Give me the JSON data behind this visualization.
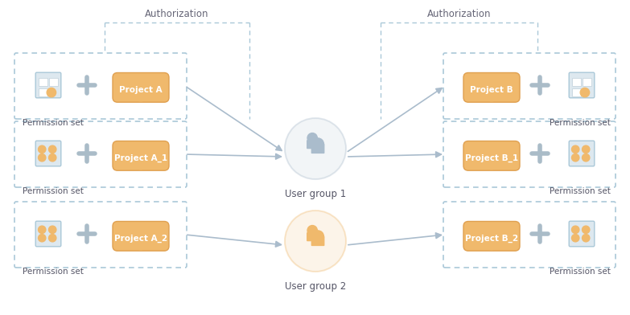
{
  "bg_color": "#ffffff",
  "dashed_box_color": "#aac8d8",
  "perm_box_fill": "#dde8ef",
  "perm_box_edge": "#aac8d8",
  "cloud_fill": "#f0b96c",
  "cloud_edge": "#e0a050",
  "plus_color": "#aabcc8",
  "user_group1_color": "#aabccc",
  "user_group2_color": "#f0b96c",
  "arrow_color": "#aabccc",
  "text_color": "#555566",
  "auth_text_color": "#666677",
  "left_boxes": [
    {
      "project": "Project A",
      "row": 0
    },
    {
      "project": "Project A_1",
      "row": 1
    },
    {
      "project": "Project A_2",
      "row": 2
    }
  ],
  "right_boxes": [
    {
      "project": "Project B",
      "row": 0
    },
    {
      "project": "Project B_1",
      "row": 1
    },
    {
      "project": "Project B_2",
      "row": 2
    }
  ],
  "user_groups": [
    {
      "label": "User group 1",
      "row": 0
    },
    {
      "label": "User group 2",
      "row": 2
    }
  ]
}
